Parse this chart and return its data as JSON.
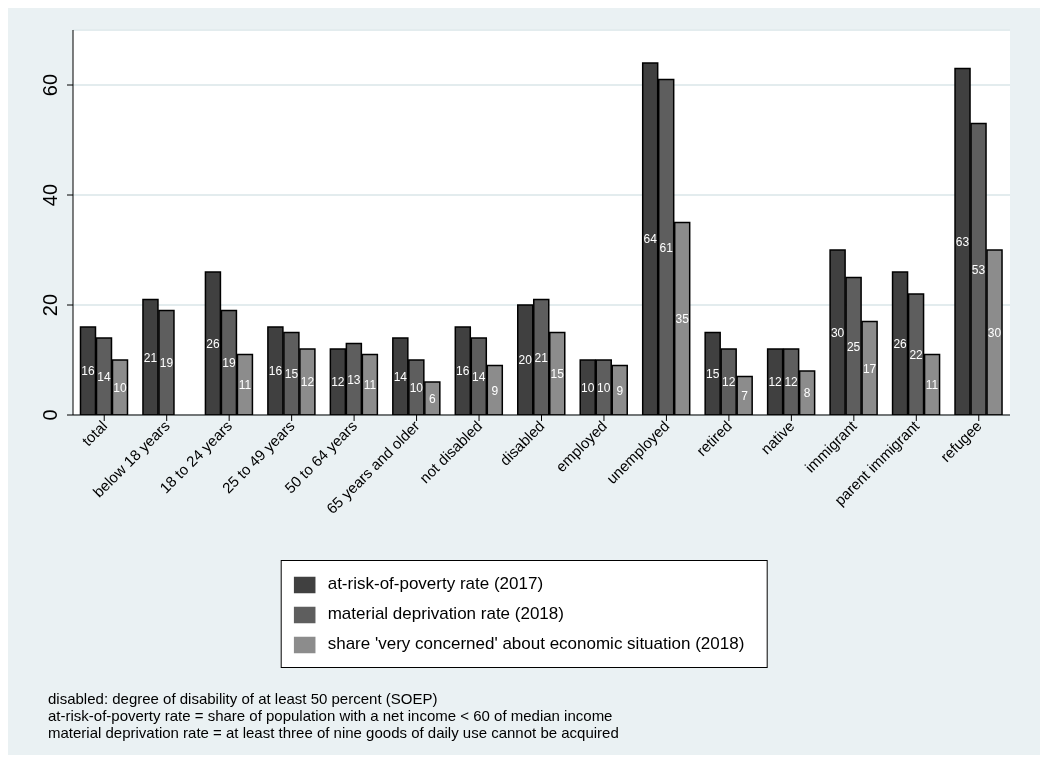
{
  "chart_data": {
    "type": "bar",
    "categories": [
      "total",
      "below 18 years",
      "18 to 24 years",
      "25 to 49 years",
      "50 to 64 years",
      "65 years and older",
      "not disabled",
      "disabled",
      "employed",
      "unemployed",
      "retired",
      "native",
      "immigrant",
      "parent immigrant",
      "refugee"
    ],
    "series": [
      {
        "name": "at-risk-of-poverty rate (2017)",
        "color": "#404040",
        "values": [
          16,
          21,
          26,
          16,
          12,
          14,
          16,
          20,
          10,
          64,
          15,
          12,
          30,
          26,
          63
        ]
      },
      {
        "name": "material deprivation rate (2018)",
        "color": "#5e5e5e",
        "values": [
          14,
          19,
          19,
          15,
          13,
          10,
          14,
          21,
          10,
          61,
          12,
          12,
          25,
          22,
          53
        ]
      },
      {
        "name": "share 'very concerned' about economic situation (2018)",
        "color": "#8c8c8c",
        "values": [
          10,
          null,
          11,
          12,
          11,
          6,
          9,
          15,
          9,
          35,
          7,
          8,
          17,
          11,
          30
        ]
      }
    ],
    "ylim": [
      0,
      70
    ],
    "yticks": [
      0,
      20,
      40,
      60
    ],
    "grid": "y",
    "legend": "bottom",
    "data_labels": true,
    "annotations": [
      "disabled: degree of disability of at least 50 percent (SOEP)",
      "at-risk-of-poverty rate = share of population with a net income < 60 of median income",
      "material deprivation rate = at least three of nine goods of daily use cannot be acquired"
    ]
  }
}
